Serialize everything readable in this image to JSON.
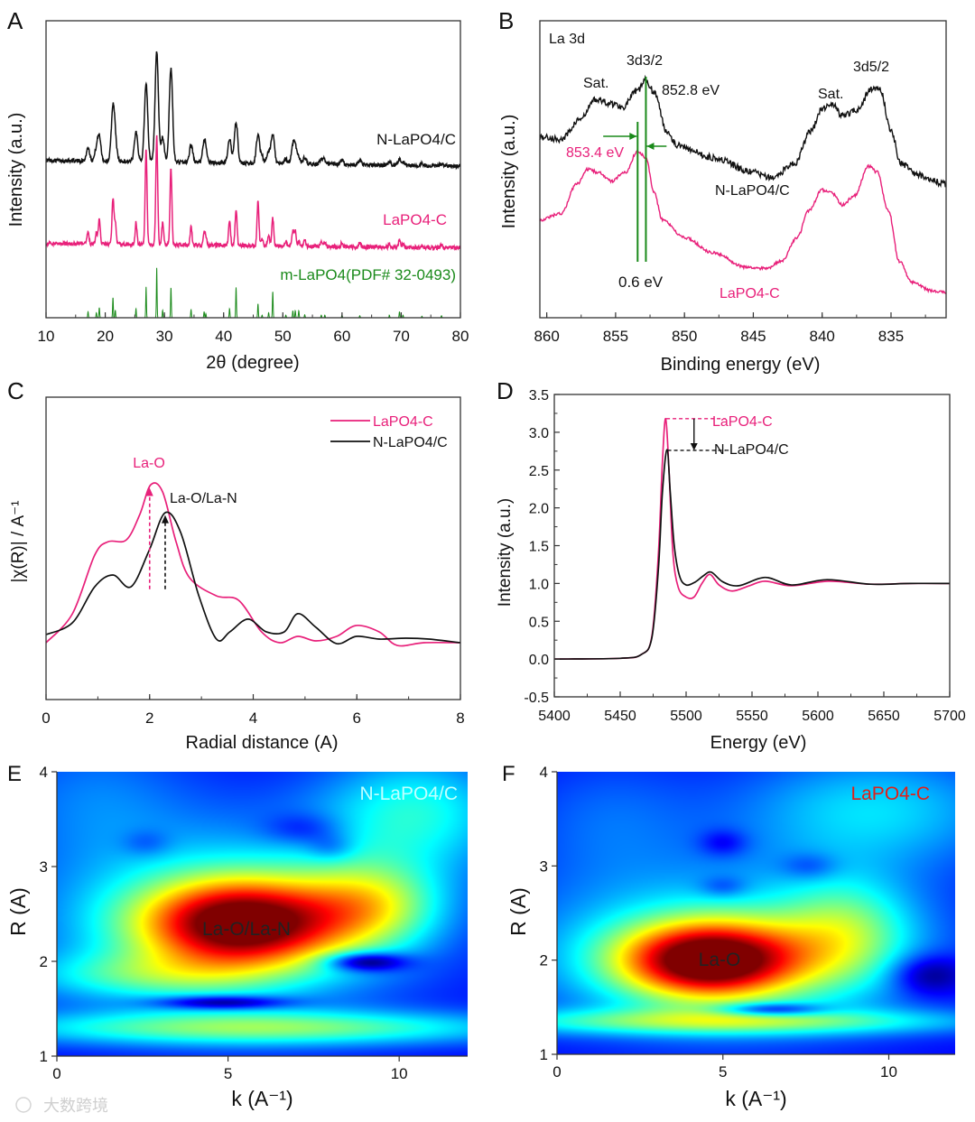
{
  "colors": {
    "black": "#111111",
    "pink": "#e8207a",
    "green": "#1a8a1a",
    "red": "#e0201a",
    "cyan": "#bfffff"
  },
  "watermark": "大数跨境",
  "chart_data": [
    {
      "id": "A",
      "type": "line",
      "panel_label": "A",
      "xlabel": "2θ (degree)",
      "ylabel": "Intensity (a.u.)",
      "xlim": [
        10,
        80
      ],
      "xticks": [
        10,
        20,
        30,
        40,
        50,
        60,
        70,
        80
      ],
      "ylim": [
        0,
        100
      ],
      "peaks": [
        17.1,
        18.5,
        19.0,
        21.3,
        21.7,
        25.2,
        26.9,
        28.7,
        29.7,
        31.1,
        34.5,
        36.7,
        37.0,
        41.0,
        42.1,
        45.8,
        46.5,
        47.6,
        48.3,
        50.5,
        51.7,
        52.1,
        52.7,
        53.7,
        56.5,
        57.1,
        60.0,
        63.0,
        68.0,
        69.7,
        70.3,
        73.5,
        76.8
      ],
      "series": [
        {
          "name": "N-LaPO4/C",
          "label": "N-LaPO4/C",
          "color": "#111111",
          "baseline": 53,
          "scale": 37,
          "width": 0.28,
          "heights": [
            0.12,
            0.1,
            0.22,
            0.47,
            0.15,
            0.28,
            0.72,
            1.0,
            0.22,
            0.85,
            0.16,
            0.16,
            0.08,
            0.22,
            0.37,
            0.26,
            0.06,
            0.1,
            0.26,
            0.04,
            0.14,
            0.14,
            0.05,
            0.06,
            0.04,
            0.04,
            0.04,
            0.04,
            0.03,
            0.05,
            0.03,
            0.02,
            0.02
          ]
        },
        {
          "name": "LaPO4-C",
          "label": "LaPO4-C",
          "color": "#e8207a",
          "baseline": 25,
          "scale": 37,
          "width": 0.16,
          "heights": [
            0.12,
            0.1,
            0.24,
            0.42,
            0.2,
            0.2,
            0.88,
            1.0,
            0.2,
            0.7,
            0.16,
            0.1,
            0.08,
            0.22,
            0.33,
            0.4,
            0.06,
            0.1,
            0.25,
            0.05,
            0.14,
            0.14,
            0.05,
            0.07,
            0.04,
            0.04,
            0.04,
            0.04,
            0.03,
            0.07,
            0.03,
            0.02,
            0.03
          ]
        },
        {
          "name": "m-LaPO4 (PDF# 32-0493)",
          "label": "m-LaPO4(PDF# 32-0493)",
          "color": "#1a8a1a",
          "baseline": 0,
          "scale": 17,
          "width": 0.06,
          "heights": [
            0.12,
            0.1,
            0.2,
            0.4,
            0.15,
            0.18,
            0.62,
            1.0,
            0.15,
            0.6,
            0.16,
            0.12,
            0.08,
            0.18,
            0.6,
            0.28,
            0.05,
            0.1,
            0.52,
            0.05,
            0.14,
            0.14,
            0.14,
            0.06,
            0.05,
            0.05,
            0.05,
            0.04,
            0.05,
            0.12,
            0.05,
            0.03,
            0.04
          ]
        }
      ]
    },
    {
      "id": "B",
      "type": "line",
      "panel_label": "B",
      "title": "La 3d",
      "xlabel": "Binding energy (eV)",
      "ylabel": "Intensity (a.u.)",
      "xlim": [
        860.5,
        831
      ],
      "xticks": [
        860,
        855,
        850,
        845,
        840,
        835
      ],
      "ylim": [
        0,
        100
      ],
      "series": [
        {
          "name": "N-LaPO4/C",
          "label": "N-LaPO4/C",
          "color": "#111111",
          "points": [
            [
              860.5,
              61
            ],
            [
              859,
              60
            ],
            [
              857.5,
              67
            ],
            [
              856.5,
              73.5
            ],
            [
              855.2,
              72
            ],
            [
              854.5,
              71
            ],
            [
              853.5,
              76
            ],
            [
              852.8,
              80
            ],
            [
              852.2,
              76
            ],
            [
              851.3,
              63
            ],
            [
              850.5,
              58
            ],
            [
              848,
              54
            ],
            [
              845,
              49
            ],
            [
              843.7,
              47
            ],
            [
              842,
              52
            ],
            [
              840.8,
              63
            ],
            [
              840,
              70.5
            ],
            [
              839.3,
              72
            ],
            [
              838.5,
              68
            ],
            [
              837.5,
              70
            ],
            [
              836.4,
              77
            ],
            [
              835.8,
              77
            ],
            [
              835,
              63
            ],
            [
              834.3,
              52
            ],
            [
              833,
              48
            ],
            [
              831,
              45
            ]
          ]
        },
        {
          "name": "LaPO4-C",
          "label": "LaPO4-C",
          "color": "#e8207a",
          "points": [
            [
              860.5,
              33
            ],
            [
              859,
              35
            ],
            [
              857.8,
              45
            ],
            [
              857,
              50
            ],
            [
              856.3,
              49
            ],
            [
              855.3,
              46
            ],
            [
              854.3,
              49
            ],
            [
              853.4,
              56
            ],
            [
              852.8,
              54
            ],
            [
              852.2,
              42
            ],
            [
              851.6,
              33
            ],
            [
              850,
              27
            ],
            [
              848,
              22
            ],
            [
              845.5,
              17
            ],
            [
              844,
              16.5
            ],
            [
              843,
              19
            ],
            [
              841.8,
              27
            ],
            [
              841,
              36
            ],
            [
              840,
              43
            ],
            [
              839.3,
              42
            ],
            [
              838.5,
              38
            ],
            [
              837.7,
              41
            ],
            [
              836.6,
              51
            ],
            [
              836,
              49
            ],
            [
              835.2,
              36
            ],
            [
              834.4,
              19
            ],
            [
              833.5,
              12
            ],
            [
              832,
              9
            ],
            [
              831,
              8.5
            ]
          ]
        }
      ],
      "annotations": {
        "sat_left": "Sat.",
        "sat_right": "Sat.",
        "peak_32": "3d3/2",
        "peak_52": "3d5/2",
        "e_black": "852.8 eV",
        "e_pink": "853.4 eV",
        "shift": "0.6 eV",
        "black_label": "N-LaPO4/C",
        "pink_label": "LaPO4-C"
      },
      "marker_lines_eV": [
        853.4,
        852.8
      ]
    },
    {
      "id": "C",
      "type": "line",
      "panel_label": "C",
      "xlabel": "Radial distance (A)",
      "ylabel": "|χ(R)| / A⁻¹",
      "xlim": [
        0,
        8
      ],
      "xticks": [
        0,
        2,
        4,
        6,
        8
      ],
      "ylim": [
        0,
        100
      ],
      "legend": "top-right",
      "series": [
        {
          "name": "LaPO4-C",
          "label": "LaPO4-C",
          "color": "#e8207a",
          "points": [
            [
              0,
              18.8
            ],
            [
              0.51,
              28.4
            ],
            [
              0.94,
              47.8
            ],
            [
              1.2,
              52.2
            ],
            [
              1.55,
              52.8
            ],
            [
              1.81,
              61.2
            ],
            [
              2.02,
              71
            ],
            [
              2.25,
              68.7
            ],
            [
              2.51,
              52.2
            ],
            [
              2.77,
              40.3
            ],
            [
              3.29,
              34.3
            ],
            [
              3.72,
              32.8
            ],
            [
              4.16,
              22.4
            ],
            [
              4.51,
              18.8
            ],
            [
              4.86,
              20.9
            ],
            [
              5.21,
              19.4
            ],
            [
              5.61,
              20.9
            ],
            [
              5.99,
              24.5
            ],
            [
              6.43,
              22.4
            ],
            [
              6.78,
              17.9
            ],
            [
              7.3,
              18.8
            ],
            [
              8,
              18.8
            ]
          ]
        },
        {
          "name": "N-LaPO4/C",
          "label": "N-LaPO4/C",
          "color": "#111111",
          "points": [
            [
              0,
              21.5
            ],
            [
              0.51,
              25.4
            ],
            [
              0.94,
              37.3
            ],
            [
              1.29,
              41.2
            ],
            [
              1.64,
              37.3
            ],
            [
              1.99,
              49.3
            ],
            [
              2.3,
              61.8
            ],
            [
              2.6,
              55.2
            ],
            [
              2.95,
              34.3
            ],
            [
              3.29,
              20
            ],
            [
              3.55,
              22.4
            ],
            [
              3.9,
              26.6
            ],
            [
              4.25,
              22.4
            ],
            [
              4.6,
              22.4
            ],
            [
              4.86,
              28.4
            ],
            [
              5.21,
              23.9
            ],
            [
              5.61,
              18.5
            ],
            [
              5.99,
              20.9
            ],
            [
              6.43,
              20
            ],
            [
              6.95,
              20.3
            ],
            [
              7.39,
              20
            ],
            [
              8,
              18.8
            ]
          ]
        }
      ],
      "annotations": {
        "la_o": "La-O",
        "la_o_la_n": "La-O/La-N",
        "la_o_R": 2.0,
        "la_o_la_n_R": 2.3
      }
    },
    {
      "id": "D",
      "type": "line",
      "panel_label": "D",
      "xlabel": "Energy (eV)",
      "ylabel": "Intensity (a.u.)",
      "xlim": [
        5400,
        5700
      ],
      "xticks": [
        5400,
        5450,
        5500,
        5550,
        5600,
        5650,
        5700
      ],
      "ylim": [
        -0.5,
        3.5
      ],
      "yticks": [
        -0.5,
        0.0,
        0.5,
        1.0,
        1.5,
        2.0,
        2.5,
        3.0,
        3.5
      ],
      "ytick_labels": [
        "-0.5",
        "0.0",
        "0.5",
        "1.0",
        "1.5",
        "2.0",
        "2.5",
        "3.0",
        "3.5"
      ],
      "xtick_labels": [
        "5400",
        "5450",
        "5500",
        "5550",
        "5600",
        "5650",
        "5700"
      ],
      "series": [
        {
          "name": "LaPO4-C",
          "label": "LaPO4-C",
          "color": "#e8207a",
          "points": [
            [
              5400,
              0
            ],
            [
              5450,
              0.01
            ],
            [
              5466,
              0.06
            ],
            [
              5474,
              0.3
            ],
            [
              5479,
              1.4
            ],
            [
              5482,
              2.6
            ],
            [
              5484.5,
              3.18
            ],
            [
              5487,
              2.5
            ],
            [
              5490,
              1.4
            ],
            [
              5494,
              0.95
            ],
            [
              5500,
              0.82
            ],
            [
              5506,
              0.82
            ],
            [
              5512,
              1.0
            ],
            [
              5518,
              1.12
            ],
            [
              5525,
              0.98
            ],
            [
              5535,
              0.9
            ],
            [
              5548,
              0.97
            ],
            [
              5560,
              1.03
            ],
            [
              5580,
              0.97
            ],
            [
              5608,
              1.03
            ],
            [
              5640,
              0.99
            ],
            [
              5670,
              1.0
            ],
            [
              5700,
              1.0
            ]
          ]
        },
        {
          "name": "N-LaPO4/C",
          "label": "N-LaPO4/C",
          "color": "#111111",
          "points": [
            [
              5400,
              0
            ],
            [
              5450,
              0.01
            ],
            [
              5466,
              0.06
            ],
            [
              5474,
              0.28
            ],
            [
              5479,
              1.2
            ],
            [
              5482,
              2.2
            ],
            [
              5485.5,
              2.77
            ],
            [
              5488,
              2.2
            ],
            [
              5491,
              1.5
            ],
            [
              5495,
              1.1
            ],
            [
              5500,
              0.98
            ],
            [
              5507,
              1.02
            ],
            [
              5513,
              1.1
            ],
            [
              5519,
              1.15
            ],
            [
              5528,
              1.02
            ],
            [
              5540,
              0.97
            ],
            [
              5560,
              1.08
            ],
            [
              5580,
              0.98
            ],
            [
              5607,
              1.05
            ],
            [
              5640,
              0.99
            ],
            [
              5670,
              1.0
            ],
            [
              5700,
              1.0
            ]
          ]
        }
      ],
      "annotations": {
        "pink_label": "LaPO4-C",
        "black_label": "N-LaPO4/C",
        "pink_level": 3.18,
        "black_level": 2.76
      }
    },
    {
      "id": "E",
      "type": "heatmap",
      "panel_label": "E",
      "label": "N-LaPO4/C",
      "peak_label": "La-O/La-N",
      "xlabel": "k (A⁻¹)",
      "ylabel": "R (A)",
      "xlim": [
        0,
        12
      ],
      "xticks": [
        0,
        5,
        10
      ],
      "ylim": [
        1,
        4
      ],
      "yticks": [
        1,
        2,
        3,
        4
      ],
      "base": 0.12,
      "components": [
        [
          5.4,
          2.4,
          0.78,
          2.1,
          0.33
        ],
        [
          5,
          2.5,
          0.25,
          4.2,
          0.75
        ],
        [
          9.2,
          2.6,
          0.3,
          1.4,
          0.32
        ],
        [
          6,
          1.3,
          0.34,
          5.5,
          0.13
        ],
        [
          2.5,
          1.85,
          0.2,
          2.5,
          0.18
        ],
        [
          10.5,
          3.6,
          0.25,
          2,
          0.45
        ],
        [
          1,
          3.8,
          0.1,
          2,
          0.5
        ],
        [
          4.8,
          1.57,
          -0.3,
          1.3,
          0.05
        ],
        [
          7.2,
          3.4,
          -0.12,
          0.8,
          0.12
        ],
        [
          2.6,
          3.25,
          -0.08,
          0.5,
          0.1
        ],
        [
          9,
          2.0,
          -0.35,
          0.8,
          0.07
        ],
        [
          8,
          3.2,
          -0.1,
          0.5,
          0.1
        ]
      ]
    },
    {
      "id": "F",
      "type": "heatmap",
      "panel_label": "F",
      "label": "LaPO4-C",
      "peak_label": "La-O",
      "xlabel": "k (A⁻¹)",
      "ylabel": "R (A)",
      "xlim": [
        0,
        12
      ],
      "xticks": [
        0,
        5,
        10
      ],
      "ylim": [
        1,
        4
      ],
      "yticks": [
        1,
        2,
        3,
        4
      ],
      "base": 0.12,
      "components": [
        [
          4.6,
          2.0,
          0.78,
          1.9,
          0.28
        ],
        [
          5,
          2.1,
          0.3,
          4.2,
          0.6
        ],
        [
          8.7,
          2.3,
          0.25,
          1.4,
          0.4
        ],
        [
          5,
          1.35,
          0.3,
          5.5,
          0.1
        ],
        [
          9.5,
          3.6,
          0.22,
          3,
          0.45
        ],
        [
          1.5,
          3.5,
          0.1,
          2,
          0.5
        ],
        [
          6.4,
          1.48,
          -0.3,
          1.1,
          0.05
        ],
        [
          5,
          3.25,
          -0.12,
          0.5,
          0.1
        ],
        [
          5,
          2.78,
          -0.1,
          0.5,
          0.08
        ],
        [
          7.6,
          3.0,
          -0.1,
          0.6,
          0.1
        ],
        [
          11.2,
          1.85,
          -0.2,
          0.8,
          0.15
        ]
      ]
    }
  ]
}
